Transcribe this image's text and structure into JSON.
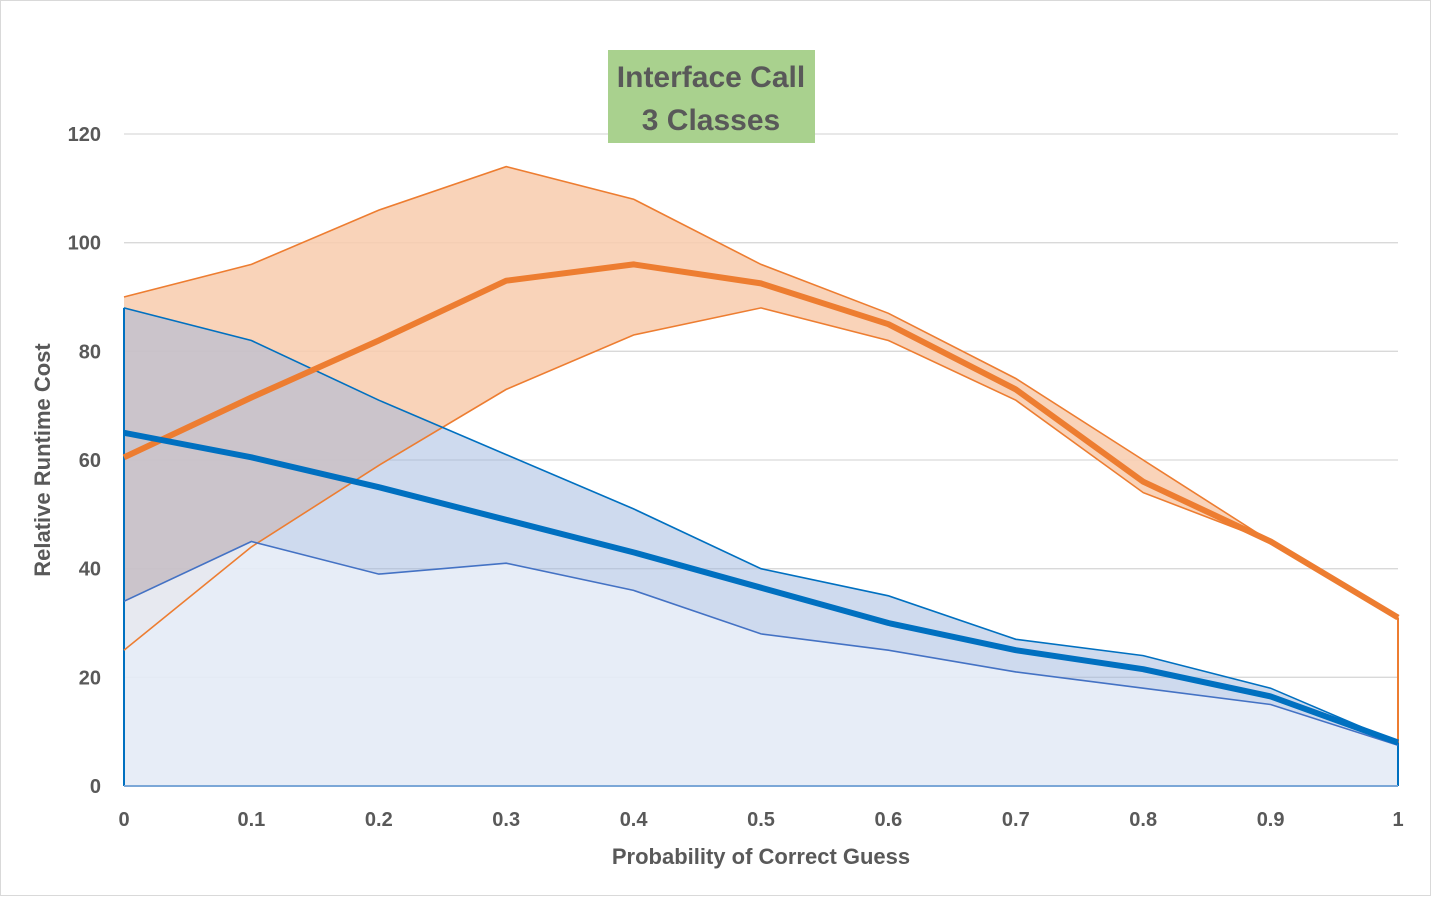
{
  "chart_data": {
    "type": "area",
    "title_lines": [
      "Interface Call",
      "3 Classes"
    ],
    "xlabel": "Probability of Correct Guess",
    "ylabel": "Relative Runtime Cost",
    "x": [
      0,
      0.1,
      0.2,
      0.3,
      0.4,
      0.5,
      0.6,
      0.7,
      0.8,
      0.9,
      1
    ],
    "x_tick_labels": [
      "0",
      "0.1",
      "0.2",
      "0.3",
      "0.4",
      "0.5",
      "0.6",
      "0.7",
      "0.8",
      "0.9",
      "1"
    ],
    "ylim": [
      0,
      120
    ],
    "y_ticks": [
      0,
      20,
      40,
      60,
      80,
      100,
      120
    ],
    "y_tick_labels": [
      "0",
      "20",
      "40",
      "60",
      "80",
      "100",
      "120"
    ],
    "grid": true,
    "legend": "none",
    "series": [
      {
        "name": "orange",
        "color": "#ED7D31",
        "band_fill": "#F8CBAD",
        "mean": [
          60.5,
          71.5,
          82,
          93,
          96,
          92.5,
          85,
          73,
          56,
          45,
          31
        ],
        "upper": [
          90,
          96,
          106,
          114,
          108,
          96,
          87,
          75,
          60,
          45,
          31
        ],
        "lower": [
          25,
          44,
          59,
          73,
          83,
          88,
          82,
          71,
          54,
          45,
          31
        ]
      },
      {
        "name": "blue",
        "color": "#0070C0",
        "band_fill": "#C9D9EF",
        "base_fill": "#E4EBF6",
        "mean": [
          65,
          60.5,
          55,
          49,
          43,
          36.5,
          30,
          25,
          21.5,
          16.5,
          8
        ],
        "upper": [
          88,
          82,
          71,
          61,
          51,
          40,
          35,
          27,
          24,
          18,
          8
        ],
        "lower": [
          34,
          45,
          39,
          41,
          36,
          28,
          25,
          21,
          18,
          15,
          7.5
        ]
      }
    ]
  }
}
